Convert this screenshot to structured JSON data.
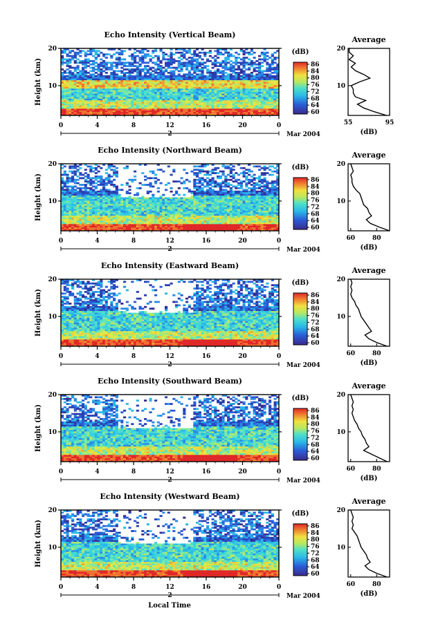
{
  "figure": {
    "x_label": "Local Time",
    "date_label": "Mar 2004",
    "day_marker": "2",
    "y_label": "Height (km)",
    "colorbar_unit": "(dB)",
    "colorbar_ticks": [
      "86",
      "84",
      "80",
      "76",
      "72",
      "68",
      "64",
      "60"
    ],
    "average_title": "Average",
    "average_xlabel": "(dB)"
  },
  "chart_data": [
    {
      "type": "heatmap",
      "title": "Echo Intensity (Vertical Beam)",
      "x_ticks": [
        "0",
        "4",
        "8",
        "12",
        "16",
        "20",
        "0"
      ],
      "y_ticks": [
        "10",
        "20"
      ],
      "ylabel": "Height (km)",
      "colorbar_range": [
        60,
        86
      ],
      "average": {
        "type": "line",
        "title": "Average",
        "xlabel": "(dB)",
        "x_ticks": [
          "55",
          "95"
        ],
        "xlim": [
          55,
          95
        ],
        "y_ticks": [
          "10",
          "20"
        ],
        "heights": [
          2,
          3,
          4,
          5,
          6,
          7,
          8,
          9,
          10,
          11,
          12,
          13,
          14,
          15,
          16,
          17,
          18,
          19,
          20
        ],
        "values": [
          92,
          80,
          70,
          64,
          72,
          62,
          60,
          60,
          58,
          66,
          76,
          70,
          62,
          58,
          62,
          56,
          60,
          56,
          56
        ]
      }
    },
    {
      "type": "heatmap",
      "title": "Echo Intensity (Northward Beam)",
      "x_ticks": [
        "0",
        "4",
        "8",
        "12",
        "16",
        "20",
        "0"
      ],
      "y_ticks": [
        "10",
        "20"
      ],
      "ylabel": "Height (km)",
      "colorbar_range": [
        60,
        86
      ],
      "average": {
        "type": "line",
        "title": "Average",
        "xlabel": "(dB)",
        "x_ticks": [
          "60",
          "80"
        ],
        "xlim": [
          58,
          90
        ],
        "y_ticks": [
          "10",
          "20"
        ],
        "heights": [
          2,
          3,
          4,
          5,
          6,
          7,
          8,
          9,
          10,
          11,
          12,
          13,
          14,
          15,
          16,
          17,
          18,
          19,
          20
        ],
        "values": [
          90,
          82,
          75,
          72,
          76,
          74,
          73,
          70,
          69,
          68,
          67,
          64,
          62,
          61,
          61,
          60,
          62,
          61,
          60
        ]
      }
    },
    {
      "type": "heatmap",
      "title": "Echo Intensity (Eastward Beam)",
      "x_ticks": [
        "0",
        "4",
        "8",
        "12",
        "16",
        "20",
        "0"
      ],
      "y_ticks": [
        "10",
        "20"
      ],
      "ylabel": "Height (km)",
      "colorbar_range": [
        60,
        86
      ],
      "average": {
        "type": "line",
        "title": "Average",
        "xlabel": "(dB)",
        "x_ticks": [
          "60",
          "80"
        ],
        "xlim": [
          58,
          90
        ],
        "y_ticks": [
          "10",
          "20"
        ],
        "heights": [
          2,
          3,
          4,
          5,
          6,
          7,
          8,
          9,
          10,
          11,
          12,
          13,
          14,
          15,
          16,
          17,
          18,
          19,
          20
        ],
        "values": [
          88,
          80,
          74,
          71,
          76,
          74,
          72,
          70,
          68,
          67,
          66,
          64,
          63,
          61,
          60,
          61,
          60,
          61,
          60
        ]
      }
    },
    {
      "type": "heatmap",
      "title": "Echo Intensity (Southward Beam)",
      "x_ticks": [
        "0",
        "4",
        "8",
        "12",
        "16",
        "20",
        "0"
      ],
      "y_ticks": [
        "10",
        "20"
      ],
      "ylabel": "Height (km)",
      "colorbar_range": [
        60,
        86
      ],
      "average": {
        "type": "line",
        "title": "Average",
        "xlabel": "(dB)",
        "x_ticks": [
          "60",
          "80"
        ],
        "xlim": [
          58,
          90
        ],
        "y_ticks": [
          "10",
          "20"
        ],
        "heights": [
          2,
          3,
          4,
          5,
          6,
          7,
          8,
          9,
          10,
          11,
          12,
          13,
          14,
          15,
          16,
          17,
          18,
          19,
          20
        ],
        "values": [
          88,
          82,
          76,
          70,
          74,
          72,
          71,
          69,
          68,
          66,
          65,
          63,
          62,
          61,
          62,
          61,
          62,
          61,
          60
        ]
      }
    },
    {
      "type": "heatmap",
      "title": "Echo Intensity (Westward Beam)",
      "x_ticks": [
        "0",
        "4",
        "8",
        "12",
        "16",
        "20",
        "0"
      ],
      "y_ticks": [
        "10",
        "20"
      ],
      "ylabel": "Height (km)",
      "colorbar_range": [
        60,
        86
      ],
      "average": {
        "type": "line",
        "title": "Average",
        "xlabel": "(dB)",
        "x_ticks": [
          "60",
          "80"
        ],
        "xlim": [
          58,
          90
        ],
        "y_ticks": [
          "10",
          "20"
        ],
        "heights": [
          2,
          3,
          4,
          5,
          6,
          7,
          8,
          9,
          10,
          11,
          12,
          13,
          14,
          15,
          16,
          17,
          18,
          19,
          20
        ],
        "values": [
          88,
          80,
          74,
          71,
          75,
          73,
          72,
          70,
          68,
          67,
          66,
          65,
          63,
          61,
          62,
          61,
          62,
          61,
          60
        ]
      }
    }
  ]
}
